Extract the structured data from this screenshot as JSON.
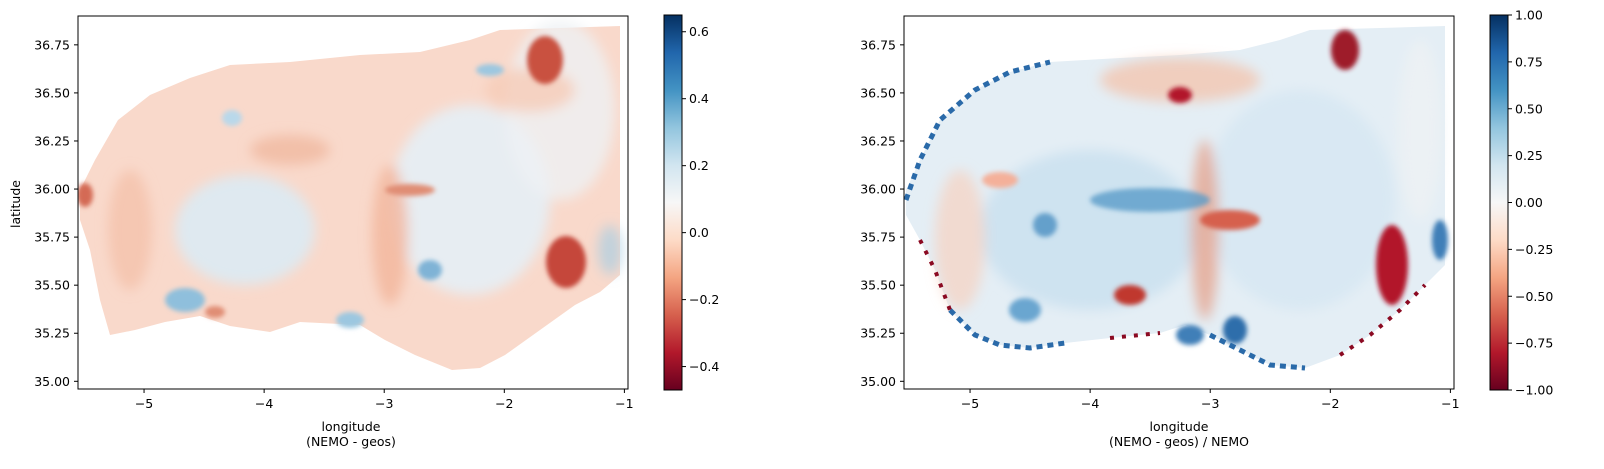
{
  "colormap": {
    "name": "RdBu",
    "stops": [
      "#67001f",
      "#b2182b",
      "#d6604d",
      "#f4a582",
      "#fddbc7",
      "#f7f7f7",
      "#d1e5f0",
      "#92c5de",
      "#4393c3",
      "#2166ac",
      "#053061"
    ]
  },
  "chart_data": [
    {
      "type": "heatmap",
      "title": "",
      "xlabel": "longitude\n(NEMO - geos)",
      "ylabel": "latitude",
      "xlim": [
        -5.55,
        -0.97
      ],
      "ylim": [
        34.96,
        36.9
      ],
      "xticks": [
        -5,
        -4,
        -3,
        -2,
        -1
      ],
      "xtick_labels": [
        "−5",
        "−4",
        "−3",
        "−2",
        "−1"
      ],
      "yticks": [
        35.0,
        35.25,
        35.5,
        35.75,
        36.0,
        36.25,
        36.5,
        36.75
      ],
      "ytick_labels": [
        "35.00",
        "35.25",
        "35.50",
        "35.75",
        "36.00",
        "36.25",
        "36.50",
        "36.75"
      ],
      "colorbar": {
        "vmin": -0.47,
        "vmax": 0.65,
        "ticks": [
          -0.4,
          -0.2,
          0.0,
          0.2,
          0.4,
          0.6
        ],
        "tick_labels": [
          "−0.4",
          "−0.2",
          "0.0",
          "0.2",
          "0.4",
          "0.6"
        ]
      }
    },
    {
      "type": "heatmap",
      "title": "",
      "xlabel": "longitude\n(NEMO - geos) / NEMO",
      "ylabel": "",
      "xlim": [
        -5.55,
        -0.97
      ],
      "ylim": [
        34.96,
        36.9
      ],
      "xticks": [
        -5,
        -4,
        -3,
        -2,
        -1
      ],
      "xtick_labels": [
        "−5",
        "−4",
        "−3",
        "−2",
        "−1"
      ],
      "yticks": [
        35.0,
        35.25,
        35.5,
        35.75,
        36.0,
        36.25,
        36.5,
        36.75
      ],
      "ytick_labels": [
        "35.00",
        "35.25",
        "35.50",
        "35.75",
        "36.00",
        "36.25",
        "36.50",
        "36.75"
      ],
      "colorbar": {
        "vmin": -1.0,
        "vmax": 1.0,
        "ticks": [
          -1.0,
          -0.75,
          -0.5,
          -0.25,
          0.0,
          0.25,
          0.5,
          0.75,
          1.0
        ],
        "tick_labels": [
          "−1.00",
          "−0.75",
          "−0.50",
          "−0.25",
          "0.00",
          "0.25",
          "0.50",
          "0.75",
          "1.00"
        ]
      }
    }
  ]
}
